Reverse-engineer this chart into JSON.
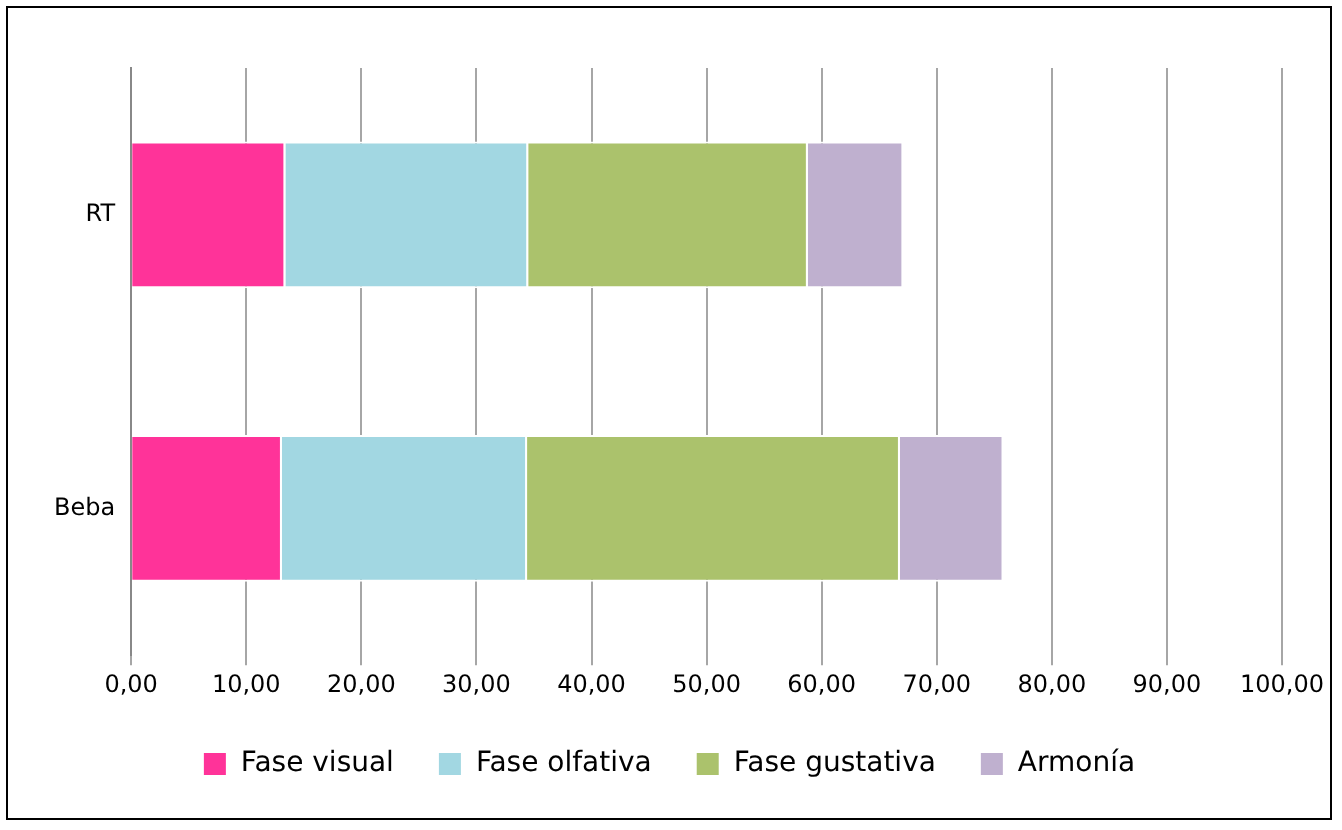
{
  "chart_data": {
    "type": "bar",
    "orientation": "horizontal",
    "stacked": true,
    "categories": [
      "RT",
      "Beba"
    ],
    "series": [
      {
        "name": "Fase visual",
        "color": "#ff3399",
        "values": [
          13.4,
          13.1
        ]
      },
      {
        "name": "Fase olfativa",
        "color": "#a2d7e2",
        "values": [
          21.1,
          21.3
        ]
      },
      {
        "name": "Fase gustativa",
        "color": "#abc26c",
        "values": [
          24.3,
          32.4
        ]
      },
      {
        "name": "Armonía",
        "color": "#bfb0cf",
        "values": [
          8.3,
          9.0
        ]
      }
    ],
    "xlim": [
      0,
      100
    ],
    "xticks": [
      {
        "value": 0,
        "label": "0,00"
      },
      {
        "value": 10,
        "label": "10,00"
      },
      {
        "value": 20,
        "label": "20,00"
      },
      {
        "value": 30,
        "label": "30,00"
      },
      {
        "value": 40,
        "label": "40,00"
      },
      {
        "value": 50,
        "label": "50,00"
      },
      {
        "value": 60,
        "label": "60,00"
      },
      {
        "value": 70,
        "label": "70,00"
      },
      {
        "value": 80,
        "label": "80,00"
      },
      {
        "value": 90,
        "label": "90,00"
      },
      {
        "value": 100,
        "label": "100,00"
      }
    ],
    "grid": "x",
    "legend": "bottom"
  }
}
